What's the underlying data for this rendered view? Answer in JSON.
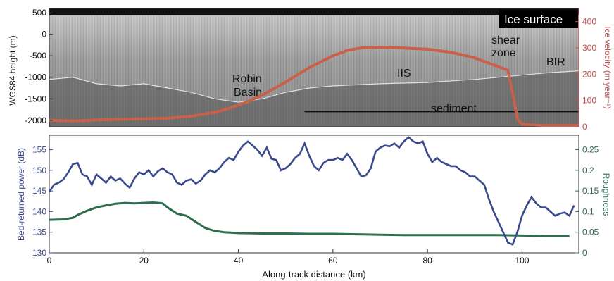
{
  "chart_data": [
    {
      "type": "line",
      "panel": "top",
      "background": "radar echogram (grayscale)",
      "left_axis": {
        "label": "WGS84 height (m)",
        "ticks": [
          500,
          0,
          -500,
          -1000,
          -1500,
          -2000
        ],
        "ylim": [
          -2150,
          600
        ]
      },
      "right_axis": {
        "label": "Ice velocity (m year⁻¹)",
        "ticks": [
          400,
          300,
          200,
          100,
          0
        ],
        "ylim": [
          0,
          450
        ],
        "color": "#c0504d"
      },
      "xlim": [
        0,
        112
      ],
      "annotations": {
        "ice_surface": "Ice surface",
        "robin_basin_line1": "Robin",
        "robin_basin_line2": "Basin",
        "iis": "IIS",
        "shear_zone_line1": "shear",
        "shear_zone_line2": "zone",
        "bir": "BIR",
        "sediment": "sediment"
      },
      "sediment_line": {
        "x": [
          54,
          112
        ],
        "height_m": -1800
      },
      "series": [
        {
          "axis": "right",
          "color": "#c8604a",
          "x": [
            0,
            5,
            10,
            15,
            20,
            25,
            30,
            35,
            38,
            42,
            46,
            50,
            55,
            60,
            63,
            66,
            70,
            74,
            80,
            85,
            90,
            94,
            97,
            98,
            99,
            100,
            104,
            108,
            112
          ],
          "values": [
            25,
            22,
            26,
            28,
            30,
            33,
            40,
            55,
            70,
            95,
            130,
            170,
            225,
            270,
            290,
            300,
            302,
            300,
            295,
            283,
            262,
            235,
            215,
            130,
            30,
            10,
            5,
            5,
            5
          ]
        }
      ],
      "bed_interface": {
        "x": [
          0,
          5,
          10,
          15,
          20,
          25,
          30,
          35,
          40,
          45,
          50,
          55,
          60,
          70,
          80,
          90,
          95,
          100,
          105,
          112
        ],
        "height_m": [
          -1050,
          -1000,
          -1150,
          -1200,
          -1150,
          -1250,
          -1350,
          -1500,
          -1580,
          -1500,
          -1350,
          -1250,
          -1200,
          -1150,
          -1120,
          -1050,
          -1000,
          -950,
          -900,
          -850
        ]
      }
    },
    {
      "type": "line",
      "panel": "bottom",
      "xlabel": "Along-track distance (km)",
      "xlim": [
        0,
        112
      ],
      "x_ticks": [
        0,
        20,
        40,
        60,
        80,
        100
      ],
      "left_axis": {
        "label": "Bed-returned power (dB)",
        "ticks": [
          130,
          135,
          140,
          145,
          150,
          155
        ],
        "ylim": [
          130,
          158.5
        ],
        "color": "#3a4a8c"
      },
      "right_axis": {
        "label": "Roughness",
        "ticks": [
          0,
          0.05,
          0.1,
          0.15,
          0.2,
          0.25
        ],
        "ylim": [
          0,
          0.285
        ],
        "color": "#2e6e4e"
      },
      "series": [
        {
          "axis": "left",
          "color": "#3a4a8c",
          "x": [
            0,
            1,
            2,
            3,
            4,
            5,
            6,
            7,
            8,
            9,
            10,
            11,
            12,
            13,
            14,
            15,
            16,
            17,
            18,
            19,
            20,
            21,
            22,
            23,
            24,
            25,
            26,
            27,
            28,
            29,
            30,
            31,
            32,
            33,
            34,
            35,
            36,
            37,
            38,
            39,
            40,
            41,
            42,
            43,
            44,
            45,
            46,
            47,
            48,
            49,
            50,
            51,
            52,
            53,
            54,
            55,
            56,
            57,
            58,
            59,
            60,
            61,
            62,
            63,
            64,
            65,
            66,
            67,
            68,
            69,
            70,
            71,
            72,
            73,
            74,
            75,
            76,
            77,
            78,
            79,
            80,
            81,
            82,
            83,
            84,
            85,
            86,
            87,
            88,
            89,
            90,
            91,
            92,
            93,
            94,
            95,
            96,
            97,
            98,
            99,
            100,
            101,
            102,
            103,
            104,
            105,
            106,
            107,
            108,
            109,
            110,
            111
          ],
          "values": [
            144.8,
            146.5,
            147.0,
            147.8,
            149.5,
            151.5,
            151.8,
            149.0,
            148.5,
            146.5,
            149.0,
            148.0,
            147.0,
            148.5,
            147.5,
            148.0,
            146.8,
            145.8,
            148.0,
            149.5,
            149.0,
            150.0,
            148.5,
            149.8,
            150.5,
            149.5,
            149.0,
            147.0,
            146.5,
            147.5,
            147.8,
            146.8,
            147.5,
            149.0,
            150.0,
            149.5,
            150.5,
            152.0,
            153.0,
            152.5,
            154.5,
            156.0,
            157.0,
            156.0,
            155.0,
            153.5,
            155.5,
            152.8,
            152.5,
            150.0,
            150.5,
            151.5,
            153.0,
            154.0,
            156.5,
            153.5,
            151.0,
            150.0,
            151.8,
            152.5,
            152.5,
            153.0,
            152.5,
            154.0,
            152.5,
            150.5,
            148.5,
            148.8,
            150.5,
            154.5,
            155.5,
            156.0,
            155.8,
            156.5,
            155.5,
            157.0,
            158.0,
            157.0,
            156.5,
            157.0,
            154.0,
            152.0,
            153.0,
            152.0,
            151.5,
            151.0,
            151.0,
            150.0,
            149.5,
            148.5,
            148.5,
            147.5,
            146.5,
            143.0,
            140.0,
            137.5,
            135.0,
            132.5,
            132.0,
            135.0,
            139.0,
            141.5,
            143.5,
            142.0,
            141.0,
            141.0,
            140.0,
            139.0,
            139.5,
            139.8,
            139.0,
            141.5
          ]
        },
        {
          "axis": "right",
          "color": "#2e6e4e",
          "x": [
            0,
            3,
            5,
            6,
            8,
            10,
            12,
            14,
            16,
            18,
            20,
            22,
            24,
            25,
            27,
            29,
            31,
            33,
            35,
            37,
            40,
            45,
            50,
            55,
            60,
            65,
            70,
            75,
            80,
            85,
            90,
            95,
            100,
            105,
            110
          ],
          "values": [
            0.08,
            0.081,
            0.085,
            0.092,
            0.102,
            0.11,
            0.115,
            0.119,
            0.121,
            0.12,
            0.121,
            0.122,
            0.12,
            0.11,
            0.095,
            0.09,
            0.075,
            0.06,
            0.053,
            0.05,
            0.048,
            0.047,
            0.047,
            0.046,
            0.046,
            0.045,
            0.044,
            0.043,
            0.043,
            0.043,
            0.043,
            0.043,
            0.042,
            0.041,
            0.041
          ]
        }
      ]
    }
  ]
}
